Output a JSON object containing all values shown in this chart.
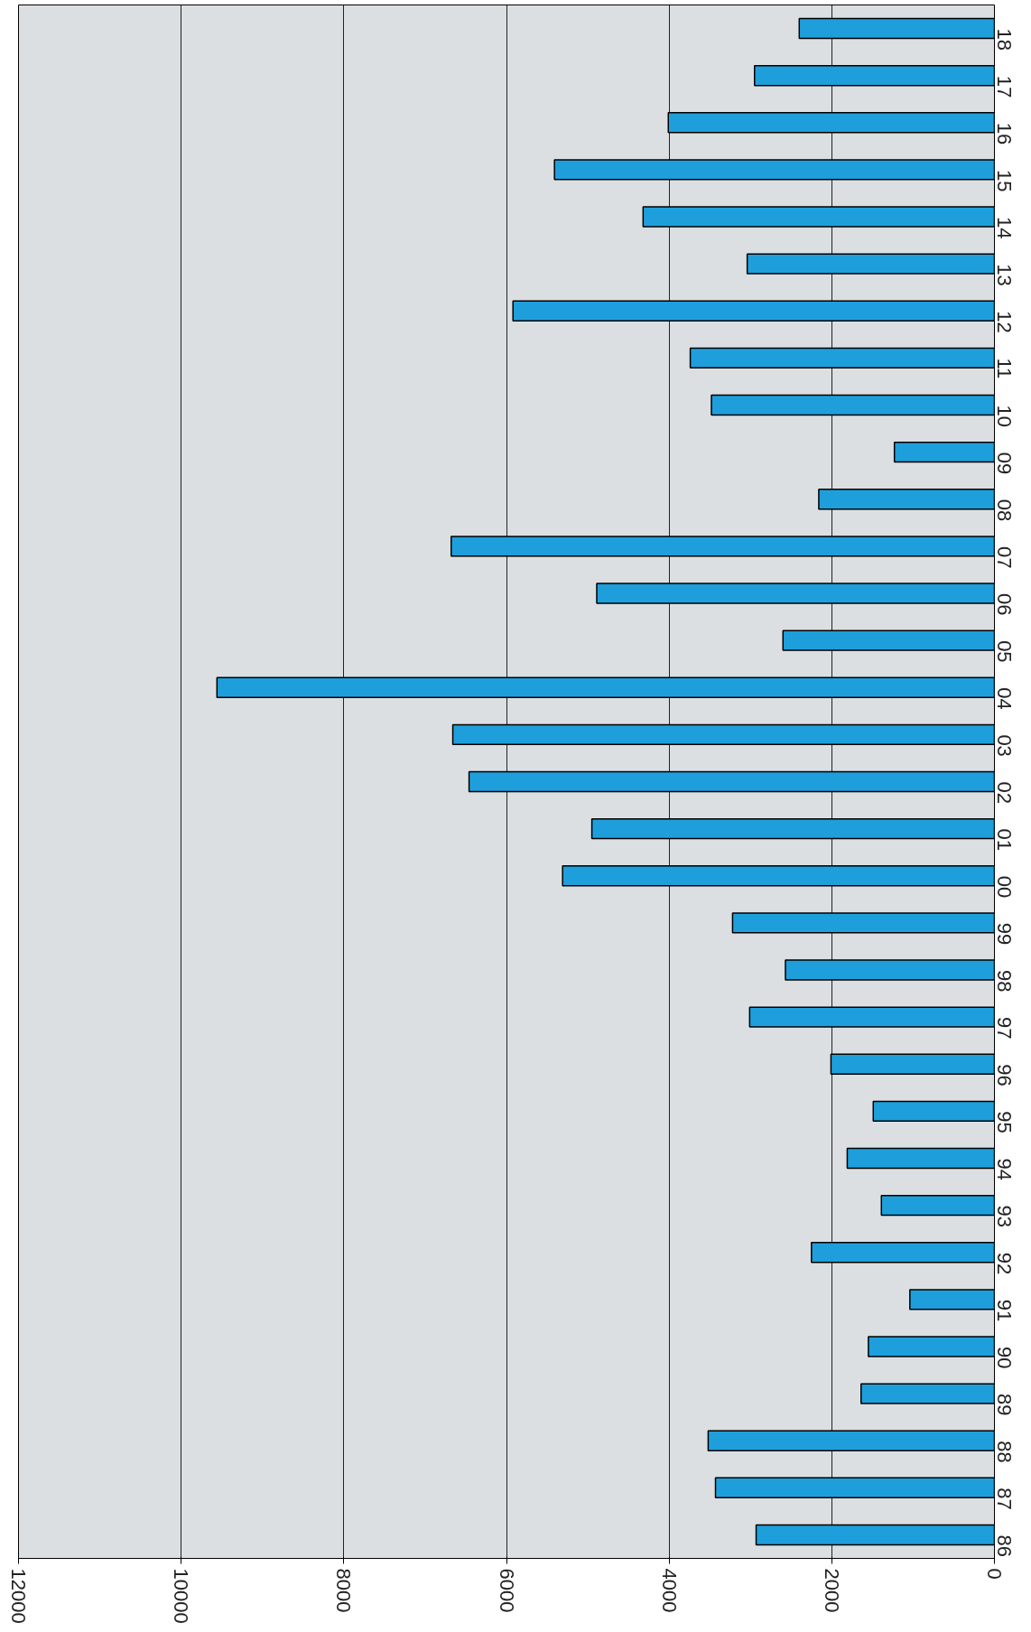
{
  "chart_data": {
    "type": "bar",
    "orientation": "horizontal",
    "categories": [
      "18",
      "17",
      "16",
      "15",
      "14",
      "13",
      "12",
      "11",
      "10",
      "09",
      "08",
      "07",
      "06",
      "05",
      "04",
      "03",
      "02",
      "01",
      "00",
      "99",
      "98",
      "97",
      "96",
      "95",
      "94",
      "93",
      "92",
      "91",
      "90",
      "89",
      "88",
      "87",
      "86"
    ],
    "values": [
      2400,
      2950,
      4010,
      5410,
      4320,
      3040,
      5920,
      3740,
      3480,
      1230,
      2160,
      6680,
      4890,
      2600,
      9560,
      6660,
      6460,
      4950,
      5310,
      3220,
      2570,
      3010,
      2010,
      1490,
      1810,
      1390,
      2250,
      1040,
      1550,
      1640,
      3520,
      3430,
      2930
    ],
    "color": "#1e9fdc",
    "xlim": [
      12000,
      0
    ],
    "xticks": [
      0,
      2000,
      4000,
      6000,
      8000,
      10000,
      12000
    ],
    "grid": "x"
  }
}
